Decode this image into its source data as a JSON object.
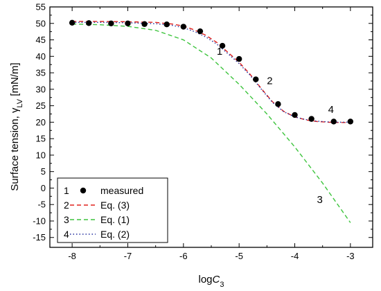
{
  "chart_data": {
    "type": "line",
    "xlabel": {
      "main": "log",
      "italic": "C",
      "sub": "3"
    },
    "ylabel": {
      "main": "Surface tension, ",
      "symbol": "γ",
      "sub": "LV",
      "unit": " [mN/m]"
    },
    "xlim": [
      -8.4,
      -2.6
    ],
    "ylim": [
      -18,
      55
    ],
    "x_ticks": [
      -8,
      -7,
      -6,
      -5,
      -4,
      -3
    ],
    "y_ticks": [
      -15,
      -10,
      -5,
      0,
      5,
      10,
      15,
      20,
      25,
      30,
      35,
      40,
      45,
      50,
      55
    ],
    "grid": false,
    "legend_position": "bottom-left",
    "series": [
      {
        "name": "measured",
        "number": "1",
        "style": "points",
        "color": "#000000",
        "points": [
          [
            -8.0,
            50.2
          ],
          [
            -7.7,
            50.1
          ],
          [
            -7.3,
            50.0
          ],
          [
            -7.0,
            50.0
          ],
          [
            -6.7,
            49.8
          ],
          [
            -6.3,
            49.7
          ],
          [
            -6.0,
            49.0
          ],
          [
            -5.7,
            47.6
          ],
          [
            -5.3,
            43.2
          ],
          [
            -5.0,
            39.2
          ],
          [
            -4.7,
            33.0
          ],
          [
            -4.3,
            25.5
          ],
          [
            -4.0,
            22.2
          ],
          [
            -3.7,
            21.0
          ],
          [
            -3.3,
            20.2
          ],
          [
            -3.0,
            20.2
          ]
        ]
      },
      {
        "name": "Eq. (3)",
        "number": "2",
        "style": "dash",
        "color": "#e0201b",
        "points": [
          [
            -8.0,
            50.6
          ],
          [
            -7.5,
            50.6
          ],
          [
            -7.0,
            50.5
          ],
          [
            -6.5,
            50.3
          ],
          [
            -6.2,
            49.8
          ],
          [
            -6.0,
            49.2
          ],
          [
            -5.8,
            48.0
          ],
          [
            -5.6,
            46.4
          ],
          [
            -5.4,
            44.2
          ],
          [
            -5.2,
            41.2
          ],
          [
            -5.0,
            38.2
          ],
          [
            -4.8,
            34.5
          ],
          [
            -4.6,
            30.2
          ],
          [
            -4.4,
            26.2
          ],
          [
            -4.2,
            23.3
          ],
          [
            -4.0,
            21.6
          ],
          [
            -3.8,
            20.7
          ],
          [
            -3.6,
            20.2
          ],
          [
            -3.4,
            20.0
          ],
          [
            -3.2,
            19.9
          ],
          [
            -3.0,
            19.9
          ]
        ]
      },
      {
        "name": "Eq. (1)",
        "number": "3",
        "style": "dash",
        "color": "#3cc43c",
        "points": [
          [
            -8.0,
            49.8
          ],
          [
            -7.5,
            49.6
          ],
          [
            -7.0,
            49.1
          ],
          [
            -6.5,
            47.9
          ],
          [
            -6.0,
            45.0
          ],
          [
            -5.5,
            39.5
          ],
          [
            -5.0,
            31.5
          ],
          [
            -4.5,
            22.5
          ],
          [
            -4.0,
            12.5
          ],
          [
            -3.5,
            1.5
          ],
          [
            -3.0,
            -10.5
          ]
        ]
      },
      {
        "name": "Eq. (2)",
        "number": "4",
        "style": "dot",
        "color": "#1f2a9c",
        "points": [
          [
            -8.0,
            50.3
          ],
          [
            -7.5,
            50.3
          ],
          [
            -7.0,
            50.2
          ],
          [
            -6.5,
            49.9
          ],
          [
            -6.2,
            49.4
          ],
          [
            -6.0,
            48.7
          ],
          [
            -5.8,
            47.5
          ],
          [
            -5.6,
            45.9
          ],
          [
            -5.4,
            43.7
          ],
          [
            -5.2,
            40.8
          ],
          [
            -5.0,
            37.8
          ],
          [
            -4.8,
            34.2
          ],
          [
            -4.6,
            30.0
          ],
          [
            -4.4,
            26.0
          ],
          [
            -4.2,
            23.2
          ],
          [
            -4.0,
            21.6
          ],
          [
            -3.8,
            20.8
          ],
          [
            -3.6,
            20.3
          ],
          [
            -3.4,
            20.1
          ],
          [
            -3.2,
            20.0
          ],
          [
            -3.0,
            20.0
          ]
        ]
      }
    ],
    "annotations": [
      {
        "text": "1",
        "x": -5.35,
        "y": 40.5
      },
      {
        "text": "2",
        "x": -4.45,
        "y": 31.5
      },
      {
        "text": "3",
        "x": -3.55,
        "y": -4.5
      },
      {
        "text": "4",
        "x": -3.35,
        "y": 22.8
      }
    ]
  }
}
